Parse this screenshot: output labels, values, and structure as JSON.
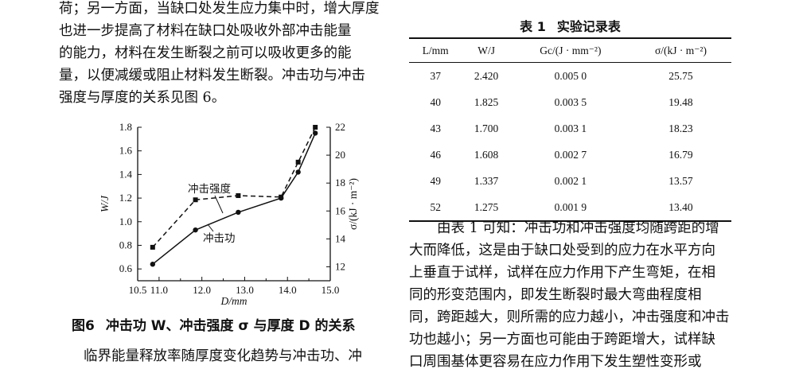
{
  "left_paragraph": [
    "荷；另一方面，当缺口处发生应力集中时，增大厚度",
    "也进一步提高了材料在缺口处吸收外部冲击能量",
    "的能力，材料在发生断裂之前可以吸收更多的能",
    "量，以便减缓或阻止材料发生断裂。冲击功与冲击",
    "强度与厚度的关系见图 6。"
  ],
  "figure": {
    "caption_number": "图6",
    "caption_text": "冲击功 W、冲击强度 σ 与厚度 D 的关系"
  },
  "chart_data": {
    "type": "line",
    "xlabel": "D/mm",
    "ylabel_left": "W/J",
    "ylabel_right": "σ/(kJ · m⁻²)",
    "xlim": [
      10.5,
      15.0
    ],
    "ylim_left": [
      0.5,
      1.8
    ],
    "ylim_right": [
      11,
      22
    ],
    "x_ticks": [
      "10.5",
      "11.0",
      "12.0",
      "13.0",
      "14.0",
      "15.0"
    ],
    "extra_x_ticks": [
      "11.5",
      "12.5",
      "13.5",
      "14.5"
    ],
    "y_left_ticks": [
      "0.6",
      "0.8",
      "1.0",
      "1.2",
      "1.4",
      "1.6",
      "1.8"
    ],
    "y_right_ticks": [
      "12",
      "14",
      "16",
      "18",
      "20",
      "22"
    ],
    "series": [
      {
        "name": "冲击功",
        "axis": "left",
        "style": "solid",
        "marker": "circle",
        "x": [
          10.85,
          11.85,
          12.85,
          13.85,
          14.25,
          14.65
        ],
        "y": [
          0.64,
          0.93,
          1.08,
          1.2,
          1.42,
          1.75
        ]
      },
      {
        "name": "冲击强度",
        "axis": "right",
        "style": "dashed",
        "marker": "square",
        "x": [
          10.85,
          11.85,
          12.85,
          13.85,
          14.25,
          14.65
        ],
        "y": [
          13.4,
          16.8,
          17.1,
          17.0,
          19.5,
          22.0
        ]
      }
    ]
  },
  "bottom_left_text": "临界能量释放率随厚度变化趋势与冲击功、冲",
  "table": {
    "caption_number": "表 1",
    "caption_text": "实验记录表",
    "headers": [
      "L/mm",
      "W/J",
      "Gc/(J · mm⁻²)",
      "σ/(kJ · m⁻²)"
    ],
    "rows": [
      [
        "37",
        "2.420",
        "0.005 0",
        "25.75"
      ],
      [
        "40",
        "1.825",
        "0.003 5",
        "19.48"
      ],
      [
        "43",
        "1.700",
        "0.003 1",
        "18.23"
      ],
      [
        "46",
        "1.608",
        "0.002 7",
        "16.79"
      ],
      [
        "49",
        "1.337",
        "0.002 1",
        "13.57"
      ],
      [
        "52",
        "1.275",
        "0.001 9",
        "13.40"
      ]
    ]
  },
  "right_paragraph": [
    "由表 1 可知：冲击功和冲击强度均随跨距的增",
    "大而降低，这是由于缺口处受到的应力在水平方向",
    "上垂直于试样，试样在应力作用下产生弯矩，在相",
    "同的形变范围内，即发生断裂时最大弯曲程度相",
    "同，跨距越大，则所需的应力越小，冲击强度和冲击",
    "功也越小；另一方面也可能由于跨距增大，试样缺",
    "口周围基体更容易在应力作用下发生塑性变形或"
  ]
}
